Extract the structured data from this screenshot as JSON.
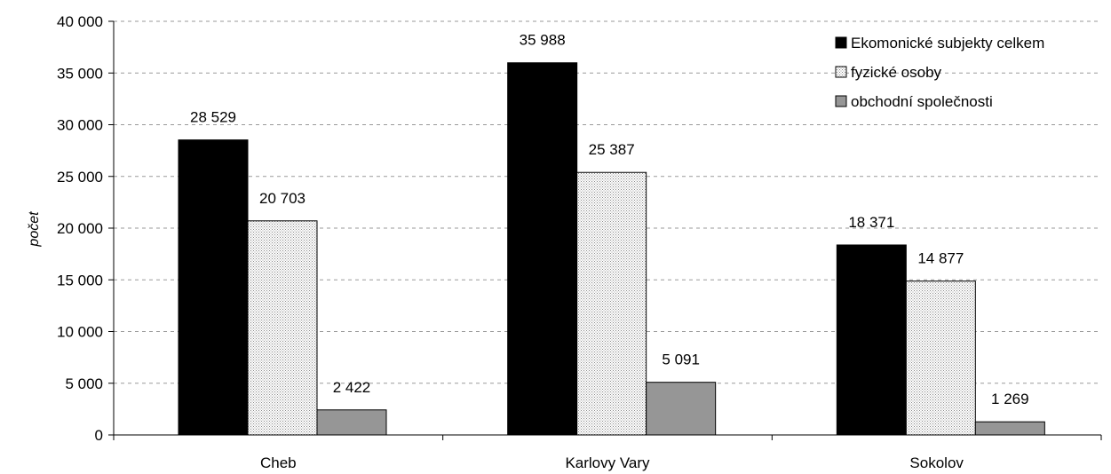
{
  "chart_data": {
    "type": "bar",
    "title": "",
    "xlabel": "",
    "ylabel": "počet",
    "categories": [
      "Cheb",
      "Karlovy Vary",
      "Sokolov"
    ],
    "series": [
      {
        "name": "Ekomonické subjekty celkem",
        "values": [
          28529,
          35988,
          18371
        ],
        "labels": [
          "28 529",
          "35 988",
          "18 371"
        ],
        "color": "#000000",
        "pattern": "solid"
      },
      {
        "name": "fyzické osoby",
        "values": [
          20703,
          25387,
          14877
        ],
        "labels": [
          "20 703",
          "25 387",
          "14 877"
        ],
        "color": "#ffffff",
        "pattern": "dotted"
      },
      {
        "name": "obchodní společnosti",
        "values": [
          2422,
          5091,
          1269
        ],
        "labels": [
          "2 422",
          "5 091",
          "1 269"
        ],
        "color": "#969696",
        "pattern": "solid"
      }
    ],
    "ylim": [
      0,
      40000
    ],
    "yticks": [
      0,
      5000,
      10000,
      15000,
      20000,
      25000,
      30000,
      35000,
      40000
    ],
    "ytick_labels": [
      "0",
      "5 000",
      "10 000",
      "15 000",
      "20 000",
      "25 000",
      "30 000",
      "35 000",
      "40 000"
    ],
    "grid": true,
    "legend_position": "top-right"
  }
}
